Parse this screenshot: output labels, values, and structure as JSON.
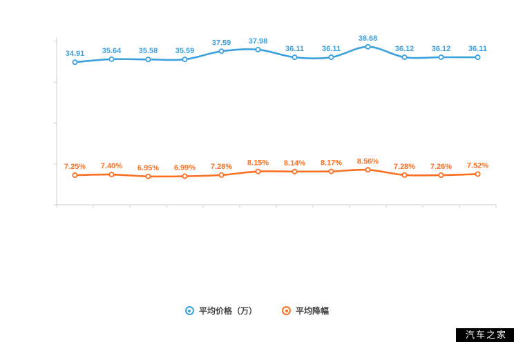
{
  "chart_data": {
    "type": "line",
    "categories": [
      "",
      "",
      "",
      "",
      "",
      "",
      "",
      "",
      "",
      "",
      "",
      ""
    ],
    "series": [
      {
        "name": "平均价格（万）",
        "color": "#3aa0e0",
        "values": [
          34.91,
          35.64,
          35.58,
          35.59,
          37.59,
          37.98,
          36.11,
          36.11,
          38.68,
          36.12,
          36.12,
          36.11
        ],
        "labels": [
          "34.91",
          "35.64",
          "35.58",
          "35.59",
          "37.59",
          "37.98",
          "36.11",
          "36.11",
          "38.68",
          "36.12",
          "36.12",
          "36.11"
        ]
      },
      {
        "name": "平均降幅",
        "color": "#ff6e20",
        "values": [
          7.25,
          7.4,
          6.95,
          6.99,
          7.28,
          8.15,
          8.14,
          8.17,
          8.56,
          7.28,
          7.26,
          7.52
        ],
        "labels": [
          "7.25%",
          "7.40%",
          "6.95%",
          "6.99%",
          "7.28%",
          "8.15%",
          "8.14%",
          "8.17%",
          "8.56%",
          "7.28%",
          "7.26%",
          "7.52%"
        ]
      }
    ],
    "title": "",
    "xlabel": "",
    "ylabel": "",
    "ylim": [
      0,
      40
    ],
    "grid": false,
    "legend_position": "bottom",
    "axis_color": "#cccccc"
  },
  "legend": {
    "items": [
      {
        "label": "平均价格（万）",
        "color": "#3aa0e0"
      },
      {
        "label": "平均降幅",
        "color": "#ff6e20"
      }
    ]
  },
  "watermark": {
    "text": "汽车之家"
  }
}
